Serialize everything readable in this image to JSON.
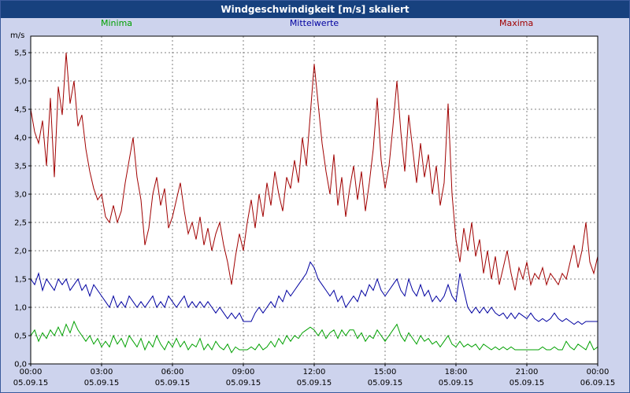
{
  "title_bar": {
    "text": "Windgeschwindigkeit [m/s] skaliert"
  },
  "colors": {
    "background": "#cdd3ed",
    "titlebar_bg": "#17417e",
    "titlebar_text": "#ffffff"
  },
  "chart_data": {
    "type": "line",
    "title": "Windgeschwindigkeit [m/s] skaliert",
    "y_unit": "m/s",
    "ylim": [
      0,
      5.5
    ],
    "grid": "dashed",
    "grid_color": "#808080",
    "axis_color": "#000000",
    "plot_bg": "#ffffff",
    "legend_position": "top",
    "ytick_labels": [
      "0,0",
      "0,5",
      "1,0",
      "1,5",
      "2,0",
      "2,5",
      "3,0",
      "3,5",
      "4,0",
      "4,5",
      "5,0",
      "5,5"
    ],
    "xtick_times": [
      "00:00",
      "03:00",
      "06:00",
      "09:00",
      "12:00",
      "15:00",
      "18:00",
      "21:00",
      "00:00"
    ],
    "xtick_dates": [
      "05.09.15",
      "05.09.15",
      "05.09.15",
      "05.09.15",
      "05.09.15",
      "05.09.15",
      "05.09.15",
      "05.09.15",
      "06.09.15"
    ],
    "x_step_minutes": 10,
    "series": [
      {
        "name": "Minima",
        "color": "#00a000",
        "values": [
          0.5,
          0.6,
          0.4,
          0.55,
          0.45,
          0.6,
          0.5,
          0.65,
          0.5,
          0.7,
          0.55,
          0.75,
          0.6,
          0.5,
          0.4,
          0.5,
          0.35,
          0.45,
          0.3,
          0.4,
          0.3,
          0.5,
          0.35,
          0.45,
          0.3,
          0.5,
          0.4,
          0.3,
          0.45,
          0.25,
          0.4,
          0.3,
          0.5,
          0.35,
          0.25,
          0.4,
          0.3,
          0.45,
          0.3,
          0.4,
          0.25,
          0.35,
          0.3,
          0.45,
          0.25,
          0.35,
          0.25,
          0.4,
          0.3,
          0.25,
          0.35,
          0.2,
          0.3,
          0.25,
          0.25,
          0.25,
          0.3,
          0.25,
          0.35,
          0.25,
          0.3,
          0.4,
          0.3,
          0.45,
          0.35,
          0.5,
          0.4,
          0.5,
          0.45,
          0.55,
          0.6,
          0.65,
          0.6,
          0.5,
          0.6,
          0.45,
          0.55,
          0.6,
          0.45,
          0.6,
          0.5,
          0.6,
          0.6,
          0.45,
          0.55,
          0.4,
          0.5,
          0.45,
          0.6,
          0.5,
          0.4,
          0.5,
          0.6,
          0.7,
          0.5,
          0.4,
          0.55,
          0.45,
          0.35,
          0.5,
          0.4,
          0.45,
          0.35,
          0.4,
          0.3,
          0.4,
          0.5,
          0.35,
          0.3,
          0.4,
          0.3,
          0.35,
          0.3,
          0.35,
          0.25,
          0.35,
          0.3,
          0.25,
          0.3,
          0.25,
          0.3,
          0.25,
          0.3,
          0.25,
          0.25,
          0.25,
          0.25,
          0.25,
          0.25,
          0.25,
          0.3,
          0.25,
          0.25,
          0.3,
          0.25,
          0.25,
          0.4,
          0.3,
          0.25,
          0.35,
          0.3,
          0.25,
          0.4,
          0.25,
          0.3
        ]
      },
      {
        "name": "Mittelwerte",
        "color": "#0000a0",
        "values": [
          1.5,
          1.4,
          1.6,
          1.3,
          1.5,
          1.4,
          1.3,
          1.5,
          1.4,
          1.5,
          1.3,
          1.4,
          1.5,
          1.3,
          1.4,
          1.2,
          1.4,
          1.3,
          1.2,
          1.1,
          1.0,
          1.2,
          1.0,
          1.1,
          1.0,
          1.2,
          1.1,
          1.0,
          1.1,
          1.0,
          1.1,
          1.2,
          1.0,
          1.1,
          1.0,
          1.2,
          1.1,
          1.0,
          1.1,
          1.2,
          1.0,
          1.1,
          1.0,
          1.1,
          1.0,
          1.1,
          1.0,
          0.9,
          1.0,
          0.9,
          0.8,
          0.9,
          0.8,
          0.9,
          0.75,
          0.75,
          0.75,
          0.9,
          1.0,
          0.9,
          1.0,
          1.1,
          1.0,
          1.2,
          1.1,
          1.3,
          1.2,
          1.3,
          1.4,
          1.5,
          1.6,
          1.8,
          1.7,
          1.5,
          1.4,
          1.3,
          1.2,
          1.3,
          1.1,
          1.2,
          1.0,
          1.1,
          1.2,
          1.1,
          1.3,
          1.2,
          1.4,
          1.3,
          1.5,
          1.3,
          1.2,
          1.3,
          1.4,
          1.5,
          1.3,
          1.2,
          1.5,
          1.3,
          1.2,
          1.4,
          1.2,
          1.3,
          1.1,
          1.2,
          1.1,
          1.2,
          1.4,
          1.2,
          1.1,
          1.6,
          1.3,
          1.0,
          0.9,
          1.0,
          0.9,
          1.0,
          0.9,
          1.0,
          0.9,
          0.85,
          0.9,
          0.8,
          0.9,
          0.8,
          0.9,
          0.85,
          0.8,
          0.9,
          0.8,
          0.75,
          0.8,
          0.75,
          0.8,
          0.9,
          0.8,
          0.75,
          0.8,
          0.75,
          0.7,
          0.75,
          0.7,
          0.75,
          0.75,
          0.75,
          0.75
        ]
      },
      {
        "name": "Maxima",
        "color": "#a00000",
        "values": [
          4.5,
          4.1,
          3.9,
          4.3,
          3.5,
          4.7,
          3.3,
          4.9,
          4.4,
          5.5,
          4.6,
          5.0,
          4.2,
          4.4,
          3.8,
          3.4,
          3.1,
          2.9,
          3.0,
          2.6,
          2.5,
          2.8,
          2.5,
          2.7,
          3.2,
          3.6,
          4.0,
          3.3,
          2.9,
          2.1,
          2.4,
          3.0,
          3.3,
          2.8,
          3.1,
          2.4,
          2.6,
          2.9,
          3.2,
          2.7,
          2.3,
          2.5,
          2.2,
          2.6,
          2.1,
          2.4,
          2.0,
          2.3,
          2.5,
          2.1,
          1.8,
          1.4,
          1.9,
          2.3,
          2.0,
          2.5,
          2.9,
          2.4,
          3.0,
          2.6,
          3.2,
          2.8,
          3.4,
          3.0,
          2.7,
          3.3,
          3.1,
          3.6,
          3.2,
          4.0,
          3.5,
          4.4,
          5.3,
          4.6,
          3.9,
          3.4,
          3.0,
          3.7,
          2.8,
          3.3,
          2.6,
          3.1,
          3.5,
          2.9,
          3.4,
          2.7,
          3.2,
          3.8,
          4.7,
          3.6,
          3.1,
          3.5,
          4.2,
          5.0,
          4.1,
          3.4,
          4.4,
          3.8,
          3.2,
          3.9,
          3.3,
          3.7,
          3.0,
          3.5,
          2.8,
          3.2,
          4.6,
          3.0,
          2.2,
          1.8,
          2.4,
          2.0,
          2.5,
          1.9,
          2.2,
          1.6,
          2.0,
          1.5,
          1.9,
          1.4,
          1.7,
          2.0,
          1.6,
          1.3,
          1.7,
          1.5,
          1.8,
          1.4,
          1.6,
          1.5,
          1.7,
          1.4,
          1.6,
          1.5,
          1.4,
          1.6,
          1.5,
          1.8,
          2.1,
          1.7,
          2.0,
          2.5,
          1.8,
          1.6,
          1.9
        ]
      }
    ]
  }
}
